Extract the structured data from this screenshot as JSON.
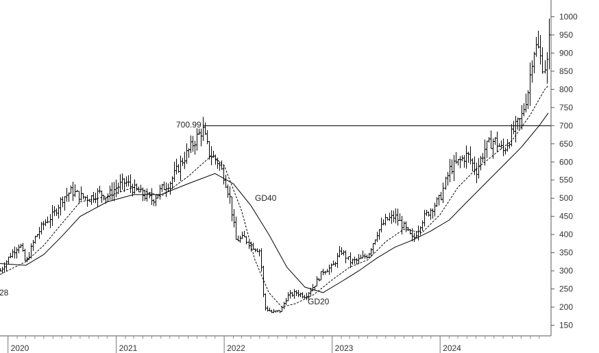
{
  "chart_data": {
    "type": "line",
    "subtype": "ohlc-bars with moving averages",
    "title": "",
    "xlabel": "",
    "ylabel": "",
    "x_tick_labels": [
      "2020",
      "2021",
      "2022",
      "2023",
      "2024"
    ],
    "y_ticks": [
      150,
      200,
      250,
      300,
      350,
      400,
      450,
      500,
      550,
      600,
      650,
      700,
      750,
      800,
      850,
      900,
      950,
      1000
    ],
    "ylim": [
      100,
      1020
    ],
    "xlim": [
      "2019-12-05",
      "2025-01-10"
    ],
    "grid": false,
    "legend": "none",
    "colors": {
      "price": "#000000",
      "gd20": "#000000",
      "gd40": "#000000",
      "resistance": "#000000"
    },
    "annotations": {
      "resistance_label": "700.99",
      "gd40_label": "GD40",
      "gd20_label": "GD20",
      "left_edge_label": "28"
    },
    "resistance_level": 700.99,
    "price_path": [
      {
        "x": "2019-12-05",
        "y": 300
      },
      {
        "x": "2020-01-10",
        "y": 345
      },
      {
        "x": "2020-02-10",
        "y": 375
      },
      {
        "x": "2020-03-01",
        "y": 320
      },
      {
        "x": "2020-04-01",
        "y": 390
      },
      {
        "x": "2020-05-01",
        "y": 430
      },
      {
        "x": "2020-06-01",
        "y": 455
      },
      {
        "x": "2020-07-01",
        "y": 500
      },
      {
        "x": "2020-08-01",
        "y": 520
      },
      {
        "x": "2020-09-01",
        "y": 505
      },
      {
        "x": "2020-10-01",
        "y": 500
      },
      {
        "x": "2020-11-01",
        "y": 515
      },
      {
        "x": "2020-12-01",
        "y": 505
      },
      {
        "x": "2021-01-01",
        "y": 530
      },
      {
        "x": "2021-02-01",
        "y": 545
      },
      {
        "x": "2021-03-01",
        "y": 525
      },
      {
        "x": "2021-04-01",
        "y": 510
      },
      {
        "x": "2021-05-01",
        "y": 495
      },
      {
        "x": "2021-06-01",
        "y": 525
      },
      {
        "x": "2021-07-01",
        "y": 545
      },
      {
        "x": "2021-08-01",
        "y": 590
      },
      {
        "x": "2021-09-01",
        "y": 630
      },
      {
        "x": "2021-10-01",
        "y": 670
      },
      {
        "x": "2021-10-20",
        "y": 690
      },
      {
        "x": "2021-11-10",
        "y": 625
      },
      {
        "x": "2021-12-10",
        "y": 600
      },
      {
        "x": "2022-01-01",
        "y": 560
      },
      {
        "x": "2022-01-20",
        "y": 500
      },
      {
        "x": "2022-02-10",
        "y": 385
      },
      {
        "x": "2022-03-10",
        "y": 390
      },
      {
        "x": "2022-04-01",
        "y": 370
      },
      {
        "x": "2022-05-01",
        "y": 355
      },
      {
        "x": "2022-05-15",
        "y": 200
      },
      {
        "x": "2022-06-10",
        "y": 185
      },
      {
        "x": "2022-07-10",
        "y": 190
      },
      {
        "x": "2022-08-01",
        "y": 230
      },
      {
        "x": "2022-09-01",
        "y": 240
      },
      {
        "x": "2022-10-01",
        "y": 230
      },
      {
        "x": "2022-11-01",
        "y": 260
      },
      {
        "x": "2022-12-01",
        "y": 300
      },
      {
        "x": "2023-01-01",
        "y": 310
      },
      {
        "x": "2023-02-01",
        "y": 355
      },
      {
        "x": "2023-03-01",
        "y": 325
      },
      {
        "x": "2023-04-01",
        "y": 330
      },
      {
        "x": "2023-05-01",
        "y": 345
      },
      {
        "x": "2023-06-01",
        "y": 405
      },
      {
        "x": "2023-07-01",
        "y": 440
      },
      {
        "x": "2023-08-01",
        "y": 450
      },
      {
        "x": "2023-09-01",
        "y": 420
      },
      {
        "x": "2023-10-01",
        "y": 385
      },
      {
        "x": "2023-11-01",
        "y": 440
      },
      {
        "x": "2023-12-01",
        "y": 470
      },
      {
        "x": "2024-01-01",
        "y": 500
      },
      {
        "x": "2024-02-01",
        "y": 580
      },
      {
        "x": "2024-03-01",
        "y": 600
      },
      {
        "x": "2024-04-01",
        "y": 620
      },
      {
        "x": "2024-05-01",
        "y": 575
      },
      {
        "x": "2024-06-01",
        "y": 640
      },
      {
        "x": "2024-07-01",
        "y": 660
      },
      {
        "x": "2024-08-01",
        "y": 630
      },
      {
        "x": "2024-09-01",
        "y": 680
      },
      {
        "x": "2024-10-01",
        "y": 720
      },
      {
        "x": "2024-10-25",
        "y": 800
      },
      {
        "x": "2024-11-10",
        "y": 905
      },
      {
        "x": "2024-11-25",
        "y": 920
      },
      {
        "x": "2024-12-10",
        "y": 870
      },
      {
        "x": "2024-12-25",
        "y": 860
      },
      {
        "x": "2025-01-01",
        "y": 950
      }
    ],
    "series": [
      {
        "name": "GD20",
        "style": "dashed",
        "points": [
          {
            "x": "2019-12-05",
            "y": 290
          },
          {
            "x": "2020-03-01",
            "y": 325
          },
          {
            "x": "2020-05-01",
            "y": 370
          },
          {
            "x": "2020-07-01",
            "y": 430
          },
          {
            "x": "2020-09-01",
            "y": 490
          },
          {
            "x": "2020-12-01",
            "y": 505
          },
          {
            "x": "2021-03-01",
            "y": 530
          },
          {
            "x": "2021-06-01",
            "y": 505
          },
          {
            "x": "2021-09-01",
            "y": 560
          },
          {
            "x": "2021-11-20",
            "y": 618
          },
          {
            "x": "2022-01-01",
            "y": 590
          },
          {
            "x": "2022-03-01",
            "y": 465
          },
          {
            "x": "2022-04-15",
            "y": 330
          },
          {
            "x": "2022-06-01",
            "y": 240
          },
          {
            "x": "2022-07-15",
            "y": 200
          },
          {
            "x": "2022-09-01",
            "y": 210
          },
          {
            "x": "2022-11-01",
            "y": 235
          },
          {
            "x": "2023-01-01",
            "y": 275
          },
          {
            "x": "2023-03-01",
            "y": 310
          },
          {
            "x": "2023-05-01",
            "y": 330
          },
          {
            "x": "2023-07-01",
            "y": 380
          },
          {
            "x": "2023-09-01",
            "y": 415
          },
          {
            "x": "2023-11-01",
            "y": 405
          },
          {
            "x": "2024-01-01",
            "y": 455
          },
          {
            "x": "2024-03-01",
            "y": 530
          },
          {
            "x": "2024-05-01",
            "y": 580
          },
          {
            "x": "2024-07-01",
            "y": 620
          },
          {
            "x": "2024-09-01",
            "y": 660
          },
          {
            "x": "2024-11-01",
            "y": 730
          },
          {
            "x": "2024-12-20",
            "y": 800
          },
          {
            "x": "2025-01-01",
            "y": 810
          }
        ]
      },
      {
        "name": "GD40",
        "style": "solid",
        "points": [
          {
            "x": "2019-12-05",
            "y": 320
          },
          {
            "x": "2020-03-01",
            "y": 315
          },
          {
            "x": "2020-05-01",
            "y": 345
          },
          {
            "x": "2020-07-01",
            "y": 395
          },
          {
            "x": "2020-09-01",
            "y": 450
          },
          {
            "x": "2020-12-01",
            "y": 490
          },
          {
            "x": "2021-03-01",
            "y": 510
          },
          {
            "x": "2021-06-01",
            "y": 510
          },
          {
            "x": "2021-09-01",
            "y": 540
          },
          {
            "x": "2021-12-01",
            "y": 568
          },
          {
            "x": "2022-02-01",
            "y": 540
          },
          {
            "x": "2022-04-01",
            "y": 480
          },
          {
            "x": "2022-06-01",
            "y": 400
          },
          {
            "x": "2022-08-01",
            "y": 310
          },
          {
            "x": "2022-10-01",
            "y": 255
          },
          {
            "x": "2022-12-01",
            "y": 240
          },
          {
            "x": "2023-02-01",
            "y": 270
          },
          {
            "x": "2023-04-01",
            "y": 300
          },
          {
            "x": "2023-06-01",
            "y": 335
          },
          {
            "x": "2023-08-01",
            "y": 365
          },
          {
            "x": "2023-10-01",
            "y": 385
          },
          {
            "x": "2023-12-01",
            "y": 410
          },
          {
            "x": "2024-02-01",
            "y": 440
          },
          {
            "x": "2024-04-01",
            "y": 490
          },
          {
            "x": "2024-06-01",
            "y": 540
          },
          {
            "x": "2024-08-01",
            "y": 590
          },
          {
            "x": "2024-10-01",
            "y": 640
          },
          {
            "x": "2024-12-01",
            "y": 700
          },
          {
            "x": "2025-01-01",
            "y": 735
          }
        ]
      }
    ]
  }
}
